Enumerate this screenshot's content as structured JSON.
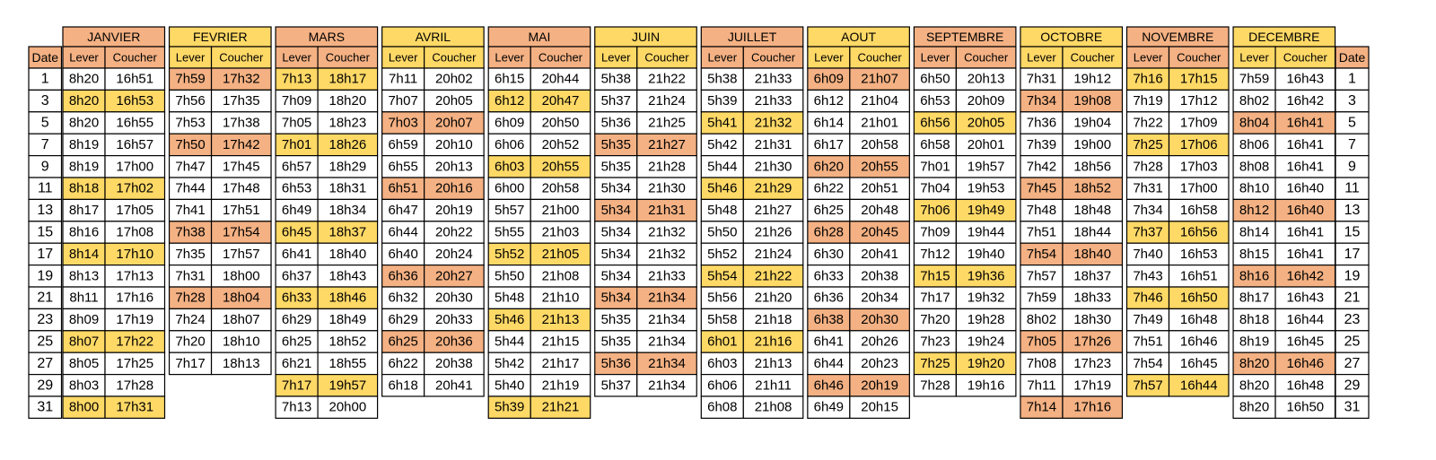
{
  "table": {
    "date_header": "Date",
    "dates": [
      1,
      3,
      5,
      7,
      9,
      11,
      13,
      15,
      17,
      19,
      21,
      23,
      25,
      27,
      29,
      31
    ],
    "columns": [
      "Lever",
      "Coucher"
    ],
    "months": [
      {
        "name": "JANVIER",
        "color": "#f4b183",
        "mark_color": "#ffd966",
        "marked": [
          1,
          5,
          8,
          12,
          15
        ],
        "rows": [
          [
            "8h20",
            "16h51"
          ],
          [
            "8h20",
            "16h53"
          ],
          [
            "8h20",
            "16h55"
          ],
          [
            "8h19",
            "16h57"
          ],
          [
            "8h19",
            "17h00"
          ],
          [
            "8h18",
            "17h02"
          ],
          [
            "8h17",
            "17h05"
          ],
          [
            "8h16",
            "17h08"
          ],
          [
            "8h14",
            "17h10"
          ],
          [
            "8h13",
            "17h13"
          ],
          [
            "8h11",
            "17h16"
          ],
          [
            "8h09",
            "17h19"
          ],
          [
            "8h07",
            "17h22"
          ],
          [
            "8h05",
            "17h25"
          ],
          [
            "8h03",
            "17h28"
          ],
          [
            "8h00",
            "17h31"
          ]
        ]
      },
      {
        "name": "FEVRIER",
        "color": "#ffd966",
        "mark_color": "#f4b183",
        "marked": [
          0,
          3,
          7,
          10
        ],
        "rows": [
          [
            "7h59",
            "17h32"
          ],
          [
            "7h56",
            "17h35"
          ],
          [
            "7h53",
            "17h38"
          ],
          [
            "7h50",
            "17h42"
          ],
          [
            "7h47",
            "17h45"
          ],
          [
            "7h44",
            "17h48"
          ],
          [
            "7h41",
            "17h51"
          ],
          [
            "7h38",
            "17h54"
          ],
          [
            "7h35",
            "17h57"
          ],
          [
            "7h31",
            "18h00"
          ],
          [
            "7h28",
            "18h04"
          ],
          [
            "7h24",
            "18h07"
          ],
          [
            "7h20",
            "18h10"
          ],
          [
            "7h17",
            "18h13"
          ]
        ]
      },
      {
        "name": "MARS",
        "color": "#f4b183",
        "mark_color": "#ffd966",
        "marked": [
          0,
          3,
          7,
          10,
          14
        ],
        "rows": [
          [
            "7h13",
            "18h17"
          ],
          [
            "7h09",
            "18h20"
          ],
          [
            "7h05",
            "18h23"
          ],
          [
            "7h01",
            "18h26"
          ],
          [
            "6h57",
            "18h29"
          ],
          [
            "6h53",
            "18h31"
          ],
          [
            "6h49",
            "18h34"
          ],
          [
            "6h45",
            "18h37"
          ],
          [
            "6h41",
            "18h40"
          ],
          [
            "6h37",
            "18h43"
          ],
          [
            "6h33",
            "18h46"
          ],
          [
            "6h29",
            "18h49"
          ],
          [
            "6h25",
            "18h52"
          ],
          [
            "6h21",
            "18h55"
          ],
          [
            "7h17",
            "19h57"
          ],
          [
            "7h13",
            "20h00"
          ]
        ]
      },
      {
        "name": "AVRIL",
        "color": "#ffd966",
        "mark_color": "#f4b183",
        "marked": [
          2,
          5,
          9,
          12
        ],
        "rows": [
          [
            "7h11",
            "20h02"
          ],
          [
            "7h07",
            "20h05"
          ],
          [
            "7h03",
            "20h07"
          ],
          [
            "6h59",
            "20h10"
          ],
          [
            "6h55",
            "20h13"
          ],
          [
            "6h51",
            "20h16"
          ],
          [
            "6h47",
            "20h19"
          ],
          [
            "6h44",
            "20h22"
          ],
          [
            "6h40",
            "20h24"
          ],
          [
            "6h36",
            "20h27"
          ],
          [
            "6h32",
            "20h30"
          ],
          [
            "6h29",
            "20h33"
          ],
          [
            "6h25",
            "20h36"
          ],
          [
            "6h22",
            "20h38"
          ],
          [
            "6h18",
            "20h41"
          ]
        ]
      },
      {
        "name": "MAI",
        "color": "#f4b183",
        "mark_color": "#ffd966",
        "marked": [
          1,
          4,
          8,
          11,
          15
        ],
        "rows": [
          [
            "6h15",
            "20h44"
          ],
          [
            "6h12",
            "20h47"
          ],
          [
            "6h09",
            "20h50"
          ],
          [
            "6h06",
            "20h52"
          ],
          [
            "6h03",
            "20h55"
          ],
          [
            "6h00",
            "20h58"
          ],
          [
            "5h57",
            "21h00"
          ],
          [
            "5h55",
            "21h03"
          ],
          [
            "5h52",
            "21h05"
          ],
          [
            "5h50",
            "21h08"
          ],
          [
            "5h48",
            "21h10"
          ],
          [
            "5h46",
            "21h13"
          ],
          [
            "5h44",
            "21h15"
          ],
          [
            "5h42",
            "21h17"
          ],
          [
            "5h40",
            "21h19"
          ],
          [
            "5h39",
            "21h21"
          ]
        ]
      },
      {
        "name": "JUIN",
        "color": "#ffd966",
        "mark_color": "#f4b183",
        "marked": [
          3,
          6,
          10,
          13
        ],
        "rows": [
          [
            "5h38",
            "21h22"
          ],
          [
            "5h37",
            "21h24"
          ],
          [
            "5h36",
            "21h25"
          ],
          [
            "5h35",
            "21h27"
          ],
          [
            "5h35",
            "21h28"
          ],
          [
            "5h34",
            "21h30"
          ],
          [
            "5h34",
            "21h31"
          ],
          [
            "5h34",
            "21h32"
          ],
          [
            "5h34",
            "21h32"
          ],
          [
            "5h34",
            "21h33"
          ],
          [
            "5h34",
            "21h34"
          ],
          [
            "5h35",
            "21h34"
          ],
          [
            "5h35",
            "21h34"
          ],
          [
            "5h36",
            "21h34"
          ],
          [
            "5h37",
            "21h34"
          ]
        ]
      },
      {
        "name": "JUILLET",
        "color": "#f4b183",
        "mark_color": "#ffd966",
        "marked": [
          2,
          5,
          9,
          12
        ],
        "rows": [
          [
            "5h38",
            "21h33"
          ],
          [
            "5h39",
            "21h33"
          ],
          [
            "5h41",
            "21h32"
          ],
          [
            "5h42",
            "21h31"
          ],
          [
            "5h44",
            "21h30"
          ],
          [
            "5h46",
            "21h29"
          ],
          [
            "5h48",
            "21h27"
          ],
          [
            "5h50",
            "21h26"
          ],
          [
            "5h52",
            "21h24"
          ],
          [
            "5h54",
            "21h22"
          ],
          [
            "5h56",
            "21h20"
          ],
          [
            "5h58",
            "21h18"
          ],
          [
            "6h01",
            "21h16"
          ],
          [
            "6h03",
            "21h13"
          ],
          [
            "6h06",
            "21h11"
          ],
          [
            "6h08",
            "21h08"
          ]
        ]
      },
      {
        "name": "AOUT",
        "color": "#ffd966",
        "mark_color": "#f4b183",
        "marked": [
          0,
          4,
          7,
          11,
          14
        ],
        "rows": [
          [
            "6h09",
            "21h07"
          ],
          [
            "6h12",
            "21h04"
          ],
          [
            "6h14",
            "21h01"
          ],
          [
            "6h17",
            "20h58"
          ],
          [
            "6h20",
            "20h55"
          ],
          [
            "6h22",
            "20h51"
          ],
          [
            "6h25",
            "20h48"
          ],
          [
            "6h28",
            "20h45"
          ],
          [
            "6h30",
            "20h41"
          ],
          [
            "6h33",
            "20h38"
          ],
          [
            "6h36",
            "20h34"
          ],
          [
            "6h38",
            "20h30"
          ],
          [
            "6h41",
            "20h26"
          ],
          [
            "6h44",
            "20h23"
          ],
          [
            "6h46",
            "20h19"
          ],
          [
            "6h49",
            "20h15"
          ]
        ]
      },
      {
        "name": "SEPTEMBRE",
        "color": "#f4b183",
        "mark_color": "#ffd966",
        "marked": [
          2,
          6,
          9,
          13
        ],
        "rows": [
          [
            "6h50",
            "20h13"
          ],
          [
            "6h53",
            "20h09"
          ],
          [
            "6h56",
            "20h05"
          ],
          [
            "6h58",
            "20h01"
          ],
          [
            "7h01",
            "19h57"
          ],
          [
            "7h04",
            "19h53"
          ],
          [
            "7h06",
            "19h49"
          ],
          [
            "7h09",
            "19h44"
          ],
          [
            "7h12",
            "19h40"
          ],
          [
            "7h15",
            "19h36"
          ],
          [
            "7h17",
            "19h32"
          ],
          [
            "7h20",
            "19h28"
          ],
          [
            "7h23",
            "19h24"
          ],
          [
            "7h25",
            "19h20"
          ],
          [
            "7h28",
            "19h16"
          ]
        ]
      },
      {
        "name": "OCTOBRE",
        "color": "#ffd966",
        "mark_color": "#f4b183",
        "marked": [
          1,
          5,
          8,
          12,
          15
        ],
        "rows": [
          [
            "7h31",
            "19h12"
          ],
          [
            "7h34",
            "19h08"
          ],
          [
            "7h36",
            "19h04"
          ],
          [
            "7h39",
            "19h00"
          ],
          [
            "7h42",
            "18h56"
          ],
          [
            "7h45",
            "18h52"
          ],
          [
            "7h48",
            "18h48"
          ],
          [
            "7h51",
            "18h44"
          ],
          [
            "7h54",
            "18h40"
          ],
          [
            "7h57",
            "18h37"
          ],
          [
            "7h59",
            "18h33"
          ],
          [
            "8h02",
            "18h30"
          ],
          [
            "7h05",
            "17h26"
          ],
          [
            "7h08",
            "17h23"
          ],
          [
            "7h11",
            "17h19"
          ],
          [
            "7h14",
            "17h16"
          ]
        ]
      },
      {
        "name": "NOVEMBRE",
        "color": "#f4b183",
        "mark_color": "#ffd966",
        "marked": [
          0,
          3,
          7,
          10,
          14
        ],
        "rows": [
          [
            "7h16",
            "17h15"
          ],
          [
            "7h19",
            "17h12"
          ],
          [
            "7h22",
            "17h09"
          ],
          [
            "7h25",
            "17h06"
          ],
          [
            "7h28",
            "17h03"
          ],
          [
            "7h31",
            "17h00"
          ],
          [
            "7h34",
            "16h58"
          ],
          [
            "7h37",
            "16h56"
          ],
          [
            "7h40",
            "16h53"
          ],
          [
            "7h43",
            "16h51"
          ],
          [
            "7h46",
            "16h50"
          ],
          [
            "7h49",
            "16h48"
          ],
          [
            "7h51",
            "16h46"
          ],
          [
            "7h54",
            "16h45"
          ],
          [
            "7h57",
            "16h44"
          ]
        ]
      },
      {
        "name": "DECEMBRE",
        "color": "#ffd966",
        "mark_color": "#f4b183",
        "marked": [
          2,
          6,
          9,
          13
        ],
        "rows": [
          [
            "7h59",
            "16h43"
          ],
          [
            "8h02",
            "16h42"
          ],
          [
            "8h04",
            "16h41"
          ],
          [
            "8h06",
            "16h41"
          ],
          [
            "8h08",
            "16h41"
          ],
          [
            "8h10",
            "16h40"
          ],
          [
            "8h12",
            "16h40"
          ],
          [
            "8h14",
            "16h41"
          ],
          [
            "8h15",
            "16h41"
          ],
          [
            "8h16",
            "16h42"
          ],
          [
            "8h17",
            "16h43"
          ],
          [
            "8h18",
            "16h44"
          ],
          [
            "8h19",
            "16h45"
          ],
          [
            "8h20",
            "16h46"
          ],
          [
            "8h20",
            "16h48"
          ],
          [
            "8h20",
            "16h50"
          ]
        ]
      }
    ]
  }
}
